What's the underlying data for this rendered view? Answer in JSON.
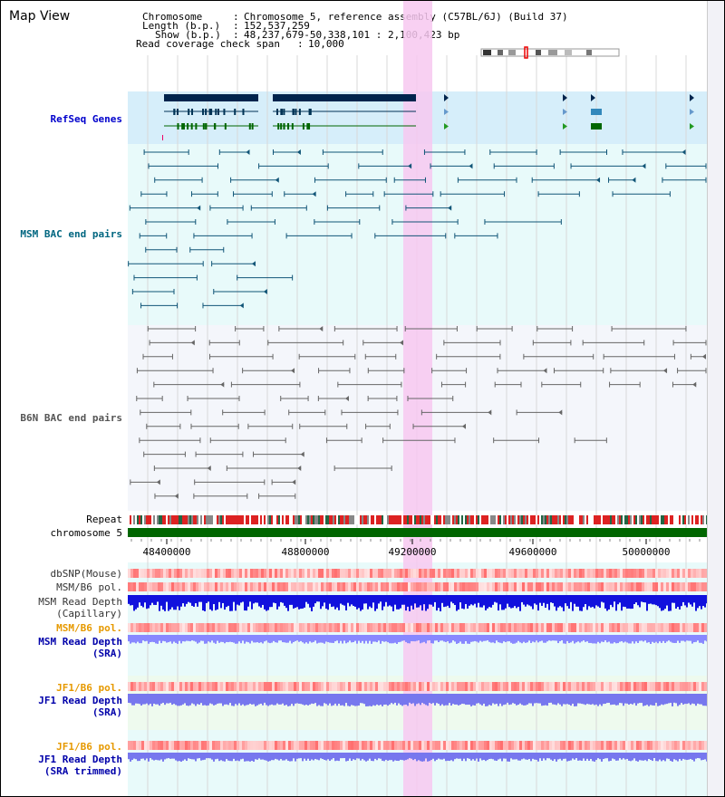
{
  "app_title": "Map View",
  "header": {
    "chromosome_label": "Chromosome",
    "chromosome_value": "Chromosome 5, reference assembly (C57BL/6J) (Build 37)",
    "length_label": "Length (b.p.)",
    "length_value": "152,537,259",
    "show_label": "Show (b.p.)",
    "show_value": "48,237,679-50,338,101 : 2,100,423 bp",
    "coverage_label": "Read coverage check span",
    "coverage_value": "10,000",
    "separator": ":"
  },
  "tracks": {
    "refseq": "RefSeq Genes",
    "msm_bac": "MSM BAC end pairs",
    "b6n_bac": "B6N BAC end pairs",
    "repeat": "Repeat",
    "chromosome": "chromosome 5",
    "dbsnp": "dbSNP(Mouse)",
    "msm_b6_pol_1": "MSM/B6 pol.",
    "msm_read_depth_cap": "MSM Read Depth\n(Capillary)",
    "msm_b6_pol_2": "MSM/B6 pol.",
    "msm_read_depth_sra": "MSM Read Depth\n(SRA)",
    "jf1_b6_pol_1": "JF1/B6 pol.",
    "jf1_read_depth_sra": "JF1 Read Depth\n(SRA)",
    "jf1_b6_pol_2": "JF1/B6 pol.",
    "jf1_read_depth_trim": "JF1 Read Depth\n(SRA trimmed)"
  },
  "axis": {
    "ticks": [
      "48400000",
      "48800000",
      "49200000",
      "49600000",
      "50000000"
    ]
  },
  "colors": {
    "refseq_label": "#0000cc",
    "msm_label": "#006680",
    "b6n_label": "#555555",
    "orange_label": "#e69900",
    "blue_label": "#0000aa",
    "highlight": "#f7c8f0",
    "refseq_bg": "#d6eefa",
    "pane_bg": "#e8fafa",
    "chromosome_bar": "#006600"
  },
  "icons": {
    "ideogram": "chromosome-ideogram-icon"
  }
}
